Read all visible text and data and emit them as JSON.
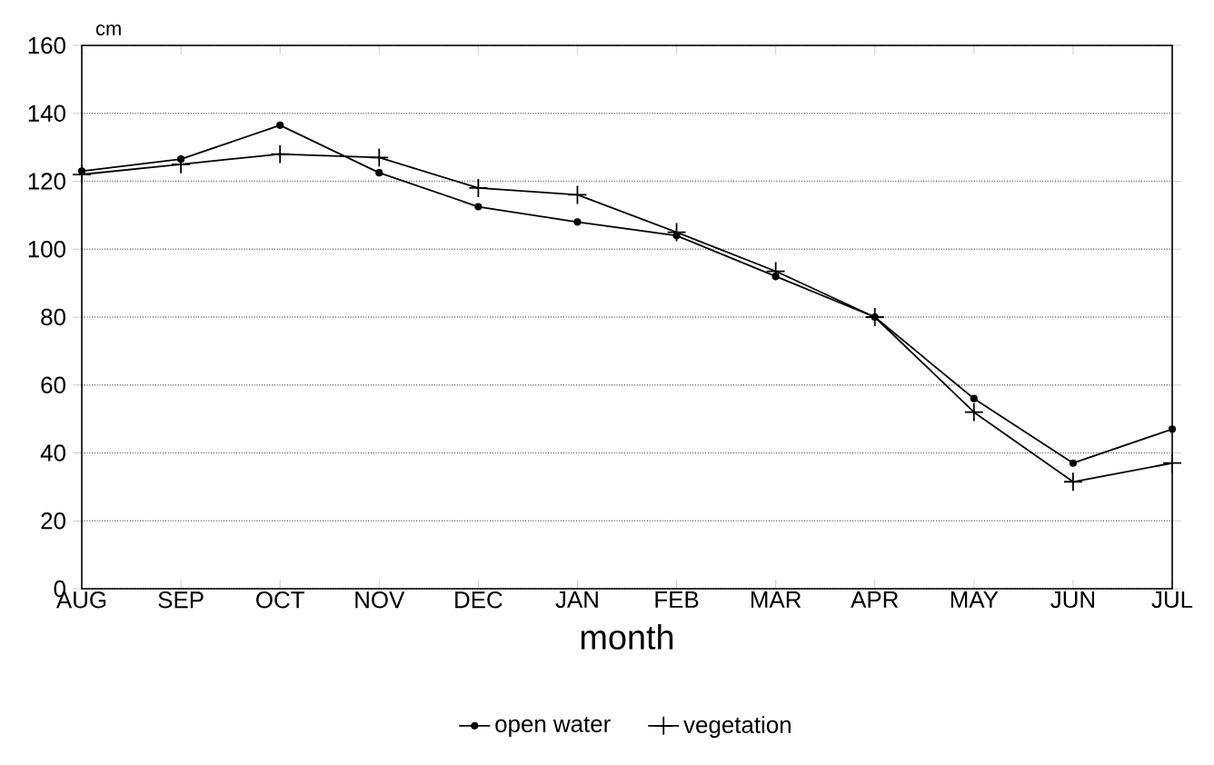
{
  "chart_data": {
    "type": "line",
    "xlabel": "month",
    "ylabel": "cm",
    "categories": [
      "AUG",
      "SEP",
      "OCT",
      "NOV",
      "DEC",
      "JAN",
      "FEB",
      "MAR",
      "APR",
      "MAY",
      "JUN",
      "JUL"
    ],
    "series": [
      {
        "name": "open water",
        "color": "#000000",
        "marker": "circle",
        "values": [
          123,
          126.5,
          136.5,
          122.5,
          112.5,
          108,
          104,
          92,
          80,
          56,
          37,
          47
        ]
      },
      {
        "name": "vegetation",
        "color": "#000000",
        "marker": "cross",
        "values": [
          122,
          125,
          128,
          127,
          118,
          116,
          105,
          93.5,
          80,
          52,
          31.5,
          37
        ]
      }
    ],
    "ylim": [
      0,
      160
    ],
    "yticks": [
      0,
      20,
      40,
      60,
      80,
      100,
      120,
      140,
      160
    ],
    "grid": "y",
    "legend": "bottom",
    "line_style": "solid"
  }
}
